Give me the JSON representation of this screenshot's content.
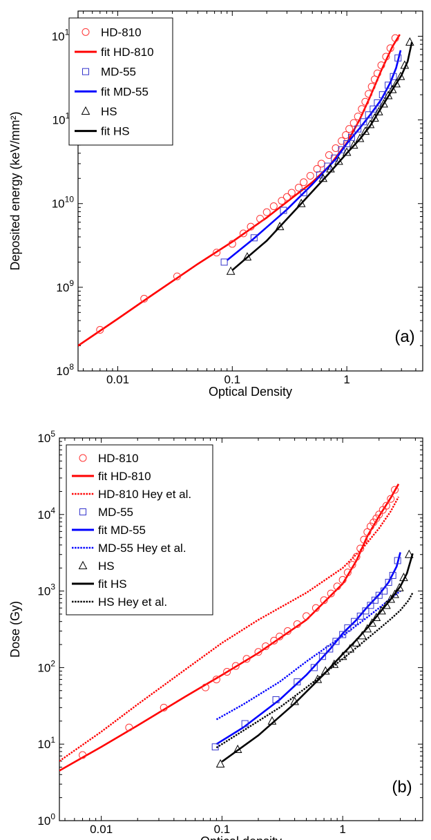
{
  "chart_data": [
    {
      "type": "scatter",
      "panel_label": "(a)",
      "xlabel": "Optical Density",
      "ylabel": "Deposited energy (keV/mm²)",
      "x_scale": "log",
      "y_scale": "log",
      "xlim": [
        0.0045,
        4.6
      ],
      "ylim": [
        100000000.0,
        2000000000000.0
      ],
      "x_ticks": [
        {
          "value": 0.01,
          "label": "0.01"
        },
        {
          "value": 0.1,
          "label": "0.1"
        },
        {
          "value": 1,
          "label": "1"
        }
      ],
      "y_ticks": [
        {
          "value": 100000000.0,
          "base": "10",
          "exp": "8"
        },
        {
          "value": 1000000000.0,
          "base": "10",
          "exp": "9"
        },
        {
          "value": 10000000000.0,
          "base": "10",
          "exp": "10"
        },
        {
          "value": 100000000000.0,
          "base": "10",
          "exp": "11"
        },
        {
          "value": 1000000000000.0,
          "base": "10",
          "exp": "12"
        }
      ],
      "grid": false,
      "legend_position": "top-left",
      "series": [
        {
          "name": "HD-810",
          "kind": "points",
          "marker": "circle",
          "color": "#ff3333",
          "x": [
            0.007,
            0.017,
            0.033,
            0.073,
            0.1,
            0.125,
            0.145,
            0.175,
            0.2,
            0.23,
            0.27,
            0.3,
            0.33,
            0.38,
            0.42,
            0.48,
            0.55,
            0.6,
            0.7,
            0.8,
            0.9,
            0.98,
            1.05,
            1.15,
            1.25,
            1.35,
            1.45,
            1.55,
            1.65,
            1.75,
            1.85,
            2.0,
            2.2,
            2.4,
            2.65
          ],
          "y": [
            310000000.0,
            730000000.0,
            1350000000.0,
            2600000000.0,
            3300000000.0,
            4400000000.0,
            5300000000.0,
            6600000000.0,
            7900000000.0,
            9300000000.0,
            10800000000.0,
            12000000000.0,
            13500000000.0,
            15500000000.0,
            18000000000.0,
            21500000000.0,
            26000000000.0,
            30000000000.0,
            38000000000.0,
            46000000000.0,
            56000000000.0,
            66000000000.0,
            78000000000.0,
            92000000000.0,
            110000000000.0,
            135000000000.0,
            165000000000.0,
            205000000000.0,
            250000000000.0,
            305000000000.0,
            360000000000.0,
            450000000000.0,
            570000000000.0,
            720000000000.0,
            950000000000.0
          ]
        },
        {
          "name": "fit HD-810",
          "kind": "line",
          "dash": "solid",
          "color": "#ff0000",
          "x": [
            0.0045,
            0.01,
            0.02,
            0.05,
            0.1,
            0.2,
            0.3,
            0.5,
            0.7,
            1.0,
            1.3,
            1.6,
            2.0,
            2.5,
            2.9
          ],
          "y": [
            200000000.0,
            420000000.0,
            810000000.0,
            1900000000.0,
            3500000000.0,
            6800000000.0,
            10500000000.0,
            18000000000.0,
            28000000000.0,
            53000000000.0,
            102000000000.0,
            190000000000.0,
            390000000000.0,
            750000000000.0,
            1050000000000.0
          ]
        },
        {
          "name": "MD-55",
          "kind": "points",
          "marker": "square",
          "color": "#3333cc",
          "x": [
            0.085,
            0.155,
            0.28,
            0.42,
            0.58,
            0.68,
            0.78,
            0.9,
            1.0,
            1.1,
            1.25,
            1.4,
            1.55,
            1.7,
            1.85,
            2.05,
            2.3,
            2.55,
            2.8
          ],
          "y": [
            2000000000.0,
            3900000000.0,
            8300000000.0,
            13500000000.0,
            22000000000.0,
            28000000000.0,
            35000000000.0,
            44000000000.0,
            52000000000.0,
            62000000000.0,
            78000000000.0,
            95000000000.0,
            115000000000.0,
            135000000000.0,
            160000000000.0,
            200000000000.0,
            260000000000.0,
            330000000000.0,
            550000000000.0
          ]
        },
        {
          "name": "fit MD-55",
          "kind": "line",
          "dash": "solid",
          "color": "#0000ff",
          "x": [
            0.09,
            0.15,
            0.3,
            0.5,
            0.8,
            1.0,
            1.3,
            1.6,
            2.0,
            2.4,
            2.7,
            2.95
          ],
          "y": [
            2100000000.0,
            3700000000.0,
            8500000000.0,
            17000000000.0,
            34000000000.0,
            52000000000.0,
            80000000000.0,
            115000000000.0,
            175000000000.0,
            280000000000.0,
            420000000000.0,
            680000000000.0
          ]
        },
        {
          "name": "HS",
          "kind": "points",
          "marker": "triangle",
          "color": "#000000",
          "x": [
            0.097,
            0.135,
            0.26,
            0.4,
            0.62,
            0.72,
            0.85,
            1.0,
            1.15,
            1.3,
            1.45,
            1.6,
            1.75,
            1.9,
            2.1,
            2.3,
            2.5,
            2.7,
            2.95,
            3.2,
            3.55
          ],
          "y": [
            1550000000.0,
            2300000000.0,
            5300000000.0,
            10000000000.0,
            20000000000.0,
            26000000000.0,
            32000000000.0,
            41000000000.0,
            50000000000.0,
            60000000000.0,
            73000000000.0,
            88000000000.0,
            105000000000.0,
            125000000000.0,
            155000000000.0,
            195000000000.0,
            230000000000.0,
            270000000000.0,
            330000000000.0,
            450000000000.0,
            850000000000.0
          ]
        },
        {
          "name": "fit HS",
          "kind": "line",
          "dash": "solid",
          "color": "#000000",
          "x": [
            0.1,
            0.2,
            0.4,
            0.7,
            1.0,
            1.3,
            1.6,
            2.0,
            2.5,
            3.0,
            3.4,
            3.7
          ],
          "y": [
            1600000000.0,
            3600000000.0,
            10000000000.0,
            23000000000.0,
            40000000000.0,
            59000000000.0,
            85000000000.0,
            140000000000.0,
            230000000000.0,
            340000000000.0,
            500000000000.0,
            850000000000.0
          ]
        }
      ]
    },
    {
      "type": "scatter",
      "panel_label": "(b)",
      "xlabel": "Optical density",
      "ylabel": "Dose (Gy)",
      "x_scale": "log",
      "y_scale": "log",
      "xlim": [
        0.0045,
        4.6
      ],
      "ylim": [
        1,
        100000.0
      ],
      "x_ticks": [
        {
          "value": 0.01,
          "label": "0.01"
        },
        {
          "value": 0.1,
          "label": "0.1"
        },
        {
          "value": 1,
          "label": "1"
        }
      ],
      "y_ticks": [
        {
          "value": 1,
          "base": "10",
          "exp": "0"
        },
        {
          "value": 10,
          "base": "10",
          "exp": "1"
        },
        {
          "value": 100,
          "base": "10",
          "exp": "2"
        },
        {
          "value": 1000,
          "base": "10",
          "exp": "3"
        },
        {
          "value": 10000,
          "base": "10",
          "exp": "4"
        },
        {
          "value": 100000,
          "base": "10",
          "exp": "5"
        }
      ],
      "grid": false,
      "legend_position": "top-left",
      "series": [
        {
          "name": "HD-810",
          "kind": "points",
          "marker": "circle",
          "color": "#ff3333",
          "x": [
            0.007,
            0.017,
            0.033,
            0.073,
            0.09,
            0.11,
            0.13,
            0.16,
            0.2,
            0.23,
            0.27,
            0.3,
            0.35,
            0.42,
            0.5,
            0.6,
            0.7,
            0.8,
            0.9,
            1.0,
            1.1,
            1.2,
            1.3,
            1.4,
            1.5,
            1.6,
            1.7,
            1.8,
            1.9,
            2.0,
            2.15,
            2.3,
            2.5,
            2.7
          ],
          "y": [
            7.2,
            16.5,
            30,
            55,
            70,
            88,
            105,
            130,
            160,
            190,
            225,
            255,
            300,
            370,
            470,
            600,
            760,
            930,
            1150,
            1400,
            1750,
            2200,
            2800,
            3600,
            4700,
            5900,
            7000,
            7900,
            8900,
            10000,
            11500,
            13000,
            16000,
            21000
          ]
        },
        {
          "name": "fit HD-810",
          "kind": "line",
          "dash": "solid",
          "color": "#ff0000",
          "x": [
            0.0045,
            0.01,
            0.02,
            0.05,
            0.1,
            0.2,
            0.5,
            1.0,
            1.3,
            1.6,
            2.0,
            2.5,
            2.9
          ],
          "y": [
            4.5,
            9.2,
            17.5,
            42,
            80,
            155,
            420,
            1250,
            2500,
            5200,
            9500,
            16500,
            25000
          ]
        },
        {
          "name": "HD-810 Hey et al.",
          "kind": "line",
          "dash": "dotted",
          "color": "#ff0000",
          "x": [
            0.0045,
            0.01,
            0.02,
            0.05,
            0.1,
            0.2,
            0.5,
            1.0,
            1.5,
            2.0,
            2.5,
            2.9
          ],
          "y": [
            6.0,
            14.5,
            33,
            95,
            210,
            420,
            950,
            2000,
            3800,
            6600,
            11000,
            17000
          ]
        },
        {
          "name": "MD-55",
          "kind": "points",
          "marker": "square",
          "color": "#3333cc",
          "x": [
            0.088,
            0.155,
            0.28,
            0.42,
            0.58,
            0.68,
            0.78,
            0.88,
            1.0,
            1.1,
            1.25,
            1.4,
            1.55,
            1.7,
            1.85,
            2.0,
            2.2,
            2.4,
            2.6,
            2.85
          ],
          "y": [
            9.2,
            18.5,
            38,
            65,
            100,
            140,
            175,
            220,
            270,
            330,
            400,
            470,
            550,
            650,
            760,
            880,
            1000,
            1300,
            1600,
            2500
          ]
        },
        {
          "name": "fit MD-55",
          "kind": "line",
          "dash": "solid",
          "color": "#0000ff",
          "x": [
            0.09,
            0.15,
            0.3,
            0.5,
            0.8,
            1.0,
            1.3,
            1.6,
            2.0,
            2.4,
            2.8,
            3.0
          ],
          "y": [
            10,
            16.5,
            38,
            80,
            180,
            280,
            420,
            620,
            900,
            1300,
            2100,
            3200
          ]
        },
        {
          "name": "MD-55 Hey et al.",
          "kind": "line",
          "dash": "dotted",
          "color": "#0000ff",
          "x": [
            0.09,
            0.15,
            0.3,
            0.5,
            1.0,
            1.5,
            2.0,
            2.5,
            3.0
          ],
          "y": [
            21,
            33,
            65,
            120,
            260,
            420,
            600,
            800,
            1000
          ]
        },
        {
          "name": "HS",
          "kind": "points",
          "marker": "triangle",
          "color": "#000000",
          "x": [
            0.097,
            0.135,
            0.26,
            0.4,
            0.62,
            0.72,
            0.85,
            1.0,
            1.15,
            1.3,
            1.45,
            1.6,
            1.75,
            1.9,
            2.1,
            2.3,
            2.5,
            2.7,
            2.95,
            3.2,
            3.55
          ],
          "y": [
            5.5,
            8.5,
            20,
            36,
            70,
            90,
            110,
            140,
            175,
            210,
            260,
            320,
            380,
            450,
            550,
            650,
            780,
            900,
            1100,
            1500,
            3000
          ]
        },
        {
          "name": "fit HS",
          "kind": "line",
          "dash": "solid",
          "color": "#000000",
          "x": [
            0.1,
            0.2,
            0.4,
            0.7,
            1.0,
            1.3,
            1.6,
            2.0,
            2.5,
            3.0,
            3.4,
            3.8
          ],
          "y": [
            5.9,
            13,
            34,
            82,
            150,
            230,
            330,
            510,
            780,
            1150,
            1700,
            3100
          ]
        },
        {
          "name": "HS Hey et al.",
          "kind": "line",
          "dash": "dotted",
          "color": "#000000",
          "x": [
            0.09,
            0.15,
            0.3,
            0.5,
            1.0,
            1.5,
            2.0,
            2.5,
            3.0,
            3.5,
            3.8
          ],
          "y": [
            9,
            15,
            30,
            55,
            130,
            220,
            320,
            430,
            560,
            750,
            950
          ]
        }
      ]
    }
  ]
}
